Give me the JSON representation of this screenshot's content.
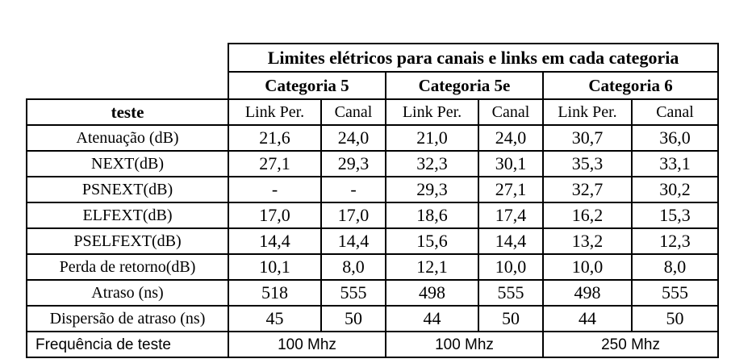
{
  "table": {
    "title": "Limites elétricos para canais e links em cada categoria",
    "categories": [
      "Categoria 5",
      "Categoria 5e",
      "Categoria 6"
    ],
    "test_header": "teste",
    "subheaders": [
      "Link Per.",
      "Canal",
      "Link Per.",
      "Canal",
      "Link Per.",
      "Canal"
    ],
    "rows": [
      {
        "label": "Atenuação (dB)",
        "values": [
          "21,6",
          "24,0",
          "21,0",
          "24,0",
          "30,7",
          "36,0"
        ]
      },
      {
        "label": "NEXT(dB)",
        "values": [
          "27,1",
          "29,3",
          "32,3",
          "30,1",
          "35,3",
          "33,1"
        ]
      },
      {
        "label": "PSNEXT(dB)",
        "values": [
          "-",
          "-",
          "29,3",
          "27,1",
          "32,7",
          "30,2"
        ]
      },
      {
        "label": "ELFEXT(dB)",
        "values": [
          "17,0",
          "17,0",
          "18,6",
          "17,4",
          "16,2",
          "15,3"
        ]
      },
      {
        "label": "PSELFEXT(dB)",
        "values": [
          "14,4",
          "14,4",
          "15,6",
          "14,4",
          "13,2",
          "12,3"
        ]
      },
      {
        "label": "Perda de retorno(dB)",
        "values": [
          "10,1",
          "8,0",
          "12,1",
          "10,0",
          "10,0",
          "8,0"
        ]
      },
      {
        "label": "Atraso (ns)",
        "values": [
          "518",
          "555",
          "498",
          "555",
          "498",
          "555"
        ]
      },
      {
        "label": "Dispersão de atraso (ns)",
        "values": [
          "45",
          "50",
          "44",
          "50",
          "44",
          "50"
        ]
      }
    ],
    "frequency": {
      "label": "Frequência de teste",
      "values": [
        "100 Mhz",
        "100 Mhz",
        "250 Mhz"
      ]
    }
  }
}
